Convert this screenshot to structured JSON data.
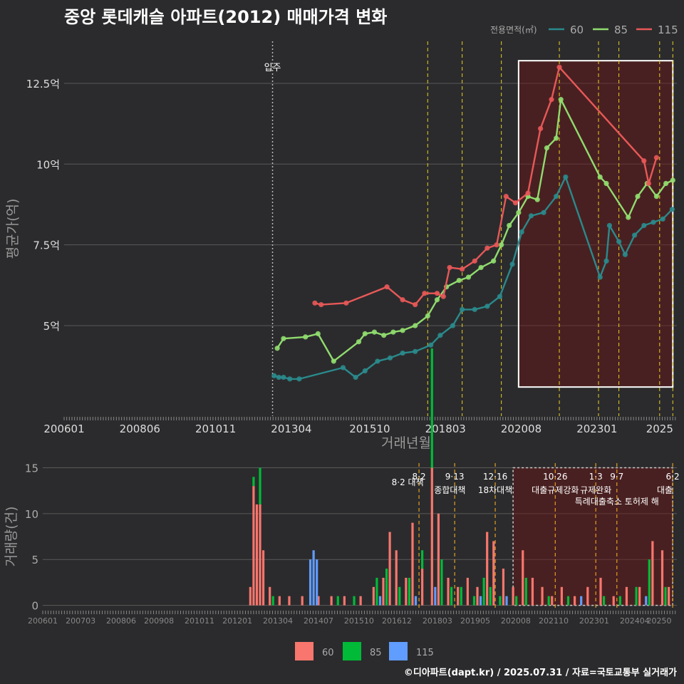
{
  "title": "중앙 롯데캐슬 아파트(2012) 매매가격 변화",
  "credit": "©디아파트(dapt.kr) / 2025.07.31 / 자료=국토교통부 실거래가",
  "colors": {
    "background": "#2b2b2d",
    "grid": "#5a5a5a",
    "s60": "#2a8a8c",
    "s85": "#90dc6e",
    "s115": "#e85858",
    "bar60": "#f8766d",
    "bar85": "#00ba38",
    "bar115": "#619cff",
    "policy": "#e8d020",
    "policy_bar": "#e0a020",
    "highlight_fill": "rgba(110,20,20,0.45)"
  },
  "chart_data": [
    {
      "type": "scatter",
      "title": "중앙 롯데캐슬 아파트(2012) 매매가격 변화",
      "xlabel": "거래년월",
      "ylabel": "평균가(억)",
      "xlim": [
        2006.0,
        2025.55
      ],
      "ylim": [
        2.2,
        13.8
      ],
      "x_ticks": [
        "200601",
        "200806",
        "201011",
        "201304",
        "201510",
        "201803",
        "202008",
        "202301",
        "2025"
      ],
      "y_ticks": [
        5,
        7.5,
        10,
        12.5
      ],
      "y_tick_labels": [
        "5억",
        "7.5억",
        "10억",
        "12.5억"
      ],
      "legend": {
        "title": "전용면적(㎡)",
        "position": "top-right",
        "labels": [
          "60",
          "85",
          "115"
        ]
      },
      "grid": true,
      "move_in": {
        "x": 2012.65,
        "label": "입주"
      },
      "policy_lines_x": [
        2017.6,
        2018.7,
        2019.95,
        2021.8,
        2023.05,
        2023.7,
        2025.0,
        2025.42
      ],
      "highlight_range": {
        "x": [
          2020.5,
          2025.42
        ],
        "y": [
          3.1,
          13.2
        ]
      },
      "series": [
        {
          "name": "60",
          "points": [
            [
              2012.7,
              3.45
            ],
            [
              2012.85,
              3.4
            ],
            [
              2013.0,
              3.4
            ],
            [
              2013.2,
              3.35
            ],
            [
              2013.5,
              3.35
            ],
            [
              2014.9,
              3.7
            ],
            [
              2015.3,
              3.4
            ],
            [
              2015.6,
              3.6
            ],
            [
              2016.0,
              3.9
            ],
            [
              2016.4,
              4.0
            ],
            [
              2016.8,
              4.15
            ],
            [
              2017.2,
              4.2
            ],
            [
              2017.7,
              4.4
            ],
            [
              2018.0,
              4.7
            ],
            [
              2018.4,
              5.0
            ],
            [
              2018.7,
              5.5
            ],
            [
              2019.1,
              5.5
            ],
            [
              2019.5,
              5.6
            ],
            [
              2019.9,
              5.9
            ],
            [
              2020.3,
              6.9
            ],
            [
              2020.6,
              7.9
            ],
            [
              2020.9,
              8.4
            ],
            [
              2021.3,
              8.5
            ],
            [
              2021.7,
              9.0
            ],
            [
              2022.0,
              9.6
            ],
            [
              2023.1,
              6.5
            ],
            [
              2023.3,
              7.0
            ],
            [
              2023.4,
              8.1
            ],
            [
              2023.7,
              7.6
            ],
            [
              2023.9,
              7.2
            ],
            [
              2024.2,
              7.8
            ],
            [
              2024.5,
              8.1
            ],
            [
              2024.8,
              8.2
            ],
            [
              2025.1,
              8.3
            ],
            [
              2025.4,
              8.6
            ]
          ]
        },
        {
          "name": "85",
          "points": [
            [
              2012.8,
              4.3
            ],
            [
              2013.0,
              4.6
            ],
            [
              2013.7,
              4.65
            ],
            [
              2014.1,
              4.75
            ],
            [
              2014.6,
              3.9
            ],
            [
              2015.4,
              4.5
            ],
            [
              2015.6,
              4.75
            ],
            [
              2015.9,
              4.8
            ],
            [
              2016.2,
              4.7
            ],
            [
              2016.5,
              4.8
            ],
            [
              2016.8,
              4.85
            ],
            [
              2017.2,
              5.0
            ],
            [
              2017.6,
              5.3
            ],
            [
              2017.9,
              5.8
            ],
            [
              2018.2,
              6.2
            ],
            [
              2018.6,
              6.4
            ],
            [
              2018.9,
              6.5
            ],
            [
              2019.3,
              6.8
            ],
            [
              2019.7,
              7.0
            ],
            [
              2019.95,
              7.5
            ],
            [
              2020.2,
              8.1
            ],
            [
              2020.5,
              8.5
            ],
            [
              2020.8,
              9.0
            ],
            [
              2021.1,
              8.9
            ],
            [
              2021.4,
              10.5
            ],
            [
              2021.7,
              10.8
            ],
            [
              2021.85,
              12.0
            ],
            [
              2023.1,
              9.6
            ],
            [
              2023.3,
              9.4
            ],
            [
              2024.0,
              8.35
            ],
            [
              2024.3,
              9.0
            ],
            [
              2024.6,
              9.4
            ],
            [
              2024.9,
              9.0
            ],
            [
              2025.2,
              9.4
            ],
            [
              2025.42,
              9.5
            ]
          ]
        },
        {
          "name": "115",
          "points": [
            [
              2014.0,
              5.7
            ],
            [
              2014.2,
              5.65
            ],
            [
              2015.0,
              5.7
            ],
            [
              2016.3,
              6.2
            ],
            [
              2016.8,
              5.8
            ],
            [
              2017.2,
              5.65
            ],
            [
              2017.5,
              6.0
            ],
            [
              2017.9,
              6.0
            ],
            [
              2018.1,
              5.9
            ],
            [
              2018.3,
              6.8
            ],
            [
              2018.7,
              6.75
            ],
            [
              2019.1,
              7.0
            ],
            [
              2019.5,
              7.4
            ],
            [
              2019.8,
              7.5
            ],
            [
              2020.1,
              9.0
            ],
            [
              2020.4,
              8.8
            ],
            [
              2020.8,
              9.1
            ],
            [
              2021.2,
              11.1
            ],
            [
              2021.55,
              12.0
            ],
            [
              2021.8,
              13.0
            ],
            [
              2024.5,
              10.1
            ],
            [
              2024.65,
              9.4
            ],
            [
              2024.9,
              10.2
            ]
          ]
        }
      ]
    },
    {
      "type": "bar",
      "xlabel": "",
      "ylabel": "거래량(건)",
      "xlim": [
        2006.0,
        2025.55
      ],
      "ylim": [
        -0.5,
        15.5
      ],
      "stacked": true,
      "x_ticks": [
        "200601",
        "200703",
        "200806",
        "200908",
        "201011",
        "201201",
        "201304",
        "201407",
        "201510",
        "201612",
        "201803",
        "201905",
        "202008",
        "202110",
        "202301",
        "202404",
        "20250"
      ],
      "y_ticks": [
        0,
        5,
        10,
        15
      ],
      "legend": {
        "position": "bottom",
        "labels": [
          "60",
          "85",
          "115"
        ]
      },
      "grid": true,
      "highlight_range": {
        "x": [
          2020.5,
          2025.42
        ],
        "y": [
          0,
          15
        ]
      },
      "policies": [
        {
          "x": 2017.6,
          "date": "8·2",
          "label": "8·2 대책"
        },
        {
          "x": 2018.7,
          "date": "9·13",
          "label": "종합대책"
        },
        {
          "x": 2019.95,
          "date": "12·16",
          "label": "18차대책"
        },
        {
          "x": 2021.8,
          "date": "10·26",
          "label": "대출규제강화"
        },
        {
          "x": 2023.05,
          "date": "1·3",
          "label": "규제완화"
        },
        {
          "x": 2023.7,
          "date": "9·7",
          "label": "특례대출축소 토허제 해"
        },
        {
          "x": 2025.42,
          "date": "6·2",
          "label": "대출"
        }
      ],
      "series": [
        {
          "name": "60",
          "values": [
            [
              2012.4,
              2
            ],
            [
              2012.5,
              13
            ],
            [
              2012.6,
              11
            ],
            [
              2012.7,
              11
            ],
            [
              2012.8,
              6
            ],
            [
              2013.0,
              2
            ],
            [
              2013.3,
              1
            ],
            [
              2013.6,
              1
            ],
            [
              2014.0,
              1
            ],
            [
              2014.5,
              1
            ],
            [
              2014.9,
              1
            ],
            [
              2015.3,
              1
            ],
            [
              2015.8,
              1
            ],
            [
              2016.2,
              2
            ],
            [
              2016.5,
              3
            ],
            [
              2016.7,
              8
            ],
            [
              2016.9,
              6
            ],
            [
              2017.2,
              3
            ],
            [
              2017.4,
              9
            ],
            [
              2017.7,
              4
            ],
            [
              2018.0,
              15
            ],
            [
              2018.2,
              10
            ],
            [
              2018.5,
              3
            ],
            [
              2018.8,
              2
            ],
            [
              2019.1,
              3
            ],
            [
              2019.4,
              2
            ],
            [
              2019.7,
              8
            ],
            [
              2019.9,
              7
            ],
            [
              2020.2,
              4
            ],
            [
              2020.5,
              2
            ],
            [
              2020.8,
              6
            ],
            [
              2021.1,
              3
            ],
            [
              2021.4,
              2
            ],
            [
              2021.7,
              1
            ],
            [
              2022.0,
              2
            ],
            [
              2022.4,
              1
            ],
            [
              2022.8,
              2
            ],
            [
              2023.2,
              3
            ],
            [
              2023.6,
              1
            ],
            [
              2024.0,
              2
            ],
            [
              2024.4,
              2
            ],
            [
              2024.8,
              7
            ],
            [
              2025.1,
              6
            ],
            [
              2025.3,
              2
            ]
          ]
        },
        {
          "name": "85",
          "values": [
            [
              2012.5,
              1
            ],
            [
              2012.7,
              4
            ],
            [
              2013.1,
              1
            ],
            [
              2015.1,
              1
            ],
            [
              2015.6,
              1
            ],
            [
              2016.3,
              3
            ],
            [
              2016.6,
              4
            ],
            [
              2017.0,
              2
            ],
            [
              2017.3,
              3
            ],
            [
              2017.7,
              2
            ],
            [
              2018.0,
              13
            ],
            [
              2018.3,
              5
            ],
            [
              2018.6,
              2
            ],
            [
              2018.9,
              2
            ],
            [
              2019.3,
              1
            ],
            [
              2019.6,
              3
            ],
            [
              2019.8,
              2
            ],
            [
              2020.1,
              1
            ],
            [
              2020.6,
              1
            ],
            [
              2020.9,
              3
            ],
            [
              2021.6,
              1
            ],
            [
              2022.2,
              1
            ],
            [
              2023.3,
              1
            ],
            [
              2023.8,
              1
            ],
            [
              2024.3,
              2
            ],
            [
              2024.7,
              5
            ],
            [
              2025.2,
              2
            ]
          ]
        },
        {
          "name": "115",
          "values": [
            [
              2014.25,
              5
            ],
            [
              2014.35,
              6
            ],
            [
              2014.45,
              5
            ],
            [
              2016.4,
              1
            ],
            [
              2017.5,
              1
            ],
            [
              2018.1,
              2
            ],
            [
              2019.5,
              1
            ],
            [
              2020.3,
              1
            ],
            [
              2022.6,
              1
            ],
            [
              2024.6,
              1
            ]
          ]
        }
      ]
    }
  ]
}
